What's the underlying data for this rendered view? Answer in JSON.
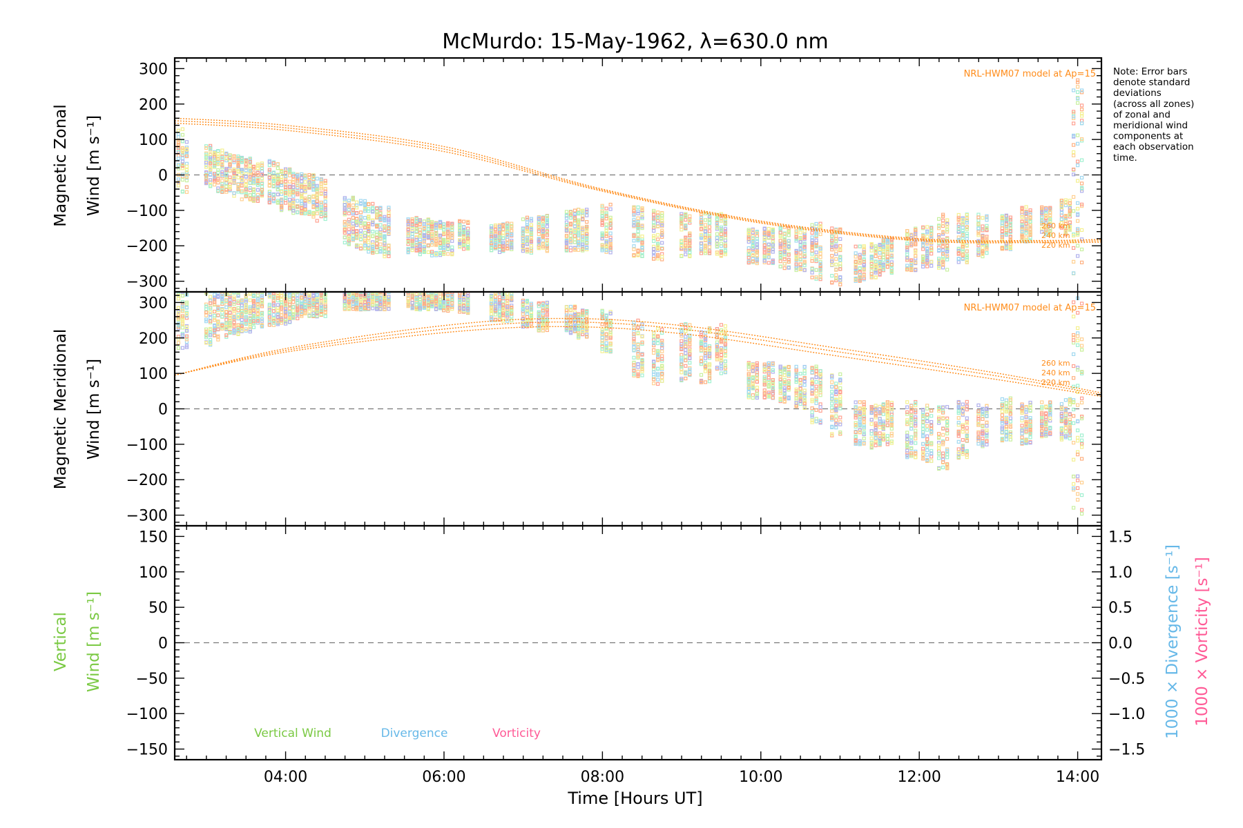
{
  "chart_data": [
    {
      "type": "scatter",
      "title": "McMurdo: 15-May-1962, λ=630.0 nm",
      "ylabel_line1": "Magnetic Zonal",
      "ylabel_line2": "Wind [m s⁻¹]",
      "xlim": [
        2.6,
        14.3
      ],
      "ylim": [
        -330,
        330
      ],
      "yticks": [
        -300,
        -200,
        -100,
        0,
        100,
        200,
        300
      ],
      "zero_line": true,
      "model_label": "NRL-HWM07 model at Ap=15",
      "altitude_labels": [
        "260 km",
        "240 km",
        "220 km"
      ],
      "model_curves": [
        {
          "name": "260 km",
          "x": [
            2.6,
            4,
            6,
            8,
            10,
            12,
            13.5,
            14.3
          ],
          "y": [
            160,
            140,
            80,
            -40,
            -130,
            -180,
            -185,
            -182
          ]
        },
        {
          "name": "240 km",
          "x": [
            2.6,
            4,
            6,
            8,
            10,
            12,
            13.5,
            14.3
          ],
          "y": [
            153,
            133,
            73,
            -43,
            -133,
            -183,
            -188,
            -186
          ]
        },
        {
          "name": "220 km",
          "x": [
            2.6,
            4,
            6,
            8,
            10,
            12,
            13.5,
            14.3
          ],
          "y": [
            146,
            126,
            66,
            -46,
            -136,
            -186,
            -191,
            -190
          ]
        }
      ],
      "observations": {
        "times": [
          2.7,
          3.05,
          3.2,
          3.35,
          3.5,
          3.65,
          3.85,
          4.0,
          4.15,
          4.3,
          4.45,
          4.8,
          4.95,
          5.1,
          5.25,
          5.6,
          5.75,
          5.9,
          6.05,
          6.25,
          6.65,
          6.8,
          7.05,
          7.25,
          7.6,
          7.75,
          8.05,
          8.45,
          8.7,
          9.05,
          9.3,
          9.5,
          9.9,
          10.1,
          10.3,
          10.5,
          10.7,
          10.95,
          11.25,
          11.45,
          11.6,
          11.9,
          12.1,
          12.3,
          12.55,
          12.8,
          13.1,
          13.35,
          13.6,
          13.85,
          14.0
        ],
        "centers": [
          40,
          25,
          10,
          0,
          -10,
          -20,
          -20,
          -40,
          -50,
          -60,
          -70,
          -130,
          -140,
          -150,
          -160,
          -170,
          -175,
          -180,
          -180,
          -170,
          -180,
          -175,
          -170,
          -165,
          -160,
          -155,
          -150,
          -160,
          -170,
          -170,
          -165,
          -170,
          -200,
          -200,
          -205,
          -210,
          -215,
          -230,
          -250,
          -240,
          -230,
          -210,
          -200,
          -190,
          -180,
          -170,
          -160,
          -140,
          -130,
          -120,
          0
        ],
        "spreads": [
          90,
          60,
          60,
          60,
          60,
          55,
          60,
          60,
          60,
          60,
          60,
          70,
          70,
          70,
          70,
          50,
          50,
          50,
          45,
          40,
          40,
          40,
          50,
          50,
          60,
          60,
          70,
          70,
          70,
          60,
          60,
          60,
          50,
          50,
          60,
          60,
          80,
          80,
          50,
          50,
          50,
          60,
          60,
          80,
          70,
          60,
          50,
          50,
          40,
          50,
          280
        ]
      }
    },
    {
      "type": "scatter",
      "ylabel_line1": "Magnetic Meridional",
      "ylabel_line2": "Wind [m s⁻¹]",
      "xlim": [
        2.6,
        14.3
      ],
      "ylim": [
        -330,
        330
      ],
      "yticks": [
        -300,
        -200,
        -100,
        0,
        100,
        200,
        300
      ],
      "zero_line": true,
      "model_label": "NRL-HWM07 model at Ap=15",
      "altitude_labels": [
        "260 km",
        "240 km",
        "220 km"
      ],
      "model_curves": [
        {
          "name": "260 km",
          "x": [
            2.6,
            4,
            6,
            7.5,
            9,
            11,
            13,
            14.3
          ],
          "y": [
            95,
            170,
            235,
            255,
            235,
            170,
            100,
            45
          ]
        },
        {
          "name": "240 km",
          "x": [
            2.6,
            4,
            6,
            7.5,
            9,
            11,
            13,
            14.3
          ],
          "y": [
            95,
            165,
            225,
            245,
            225,
            160,
            92,
            40
          ]
        },
        {
          "name": "220 km",
          "x": [
            2.6,
            4,
            6,
            7.5,
            9,
            11,
            13,
            14.3
          ],
          "y": [
            95,
            160,
            215,
            232,
            212,
            148,
            82,
            35
          ]
        }
      ],
      "observations": {
        "times": [
          2.7,
          3.05,
          3.2,
          3.35,
          3.5,
          3.65,
          3.85,
          4.0,
          4.15,
          4.3,
          4.45,
          4.8,
          4.95,
          5.1,
          5.25,
          5.6,
          5.75,
          5.9,
          6.05,
          6.25,
          6.65,
          6.8,
          7.05,
          7.25,
          7.6,
          7.75,
          8.05,
          8.45,
          8.7,
          9.05,
          9.3,
          9.5,
          9.9,
          10.1,
          10.3,
          10.5,
          10.7,
          10.95,
          11.25,
          11.45,
          11.6,
          11.9,
          12.1,
          12.3,
          12.55,
          12.8,
          13.1,
          13.35,
          13.6,
          13.85,
          14.0
        ],
        "centers": [
          250,
          260,
          265,
          270,
          275,
          280,
          285,
          290,
          295,
          300,
          300,
          310,
          310,
          310,
          310,
          310,
          310,
          310,
          305,
          300,
          290,
          285,
          270,
          260,
          250,
          240,
          220,
          170,
          150,
          160,
          150,
          170,
          80,
          80,
          70,
          60,
          40,
          10,
          -40,
          -50,
          -40,
          -60,
          -70,
          -80,
          -60,
          -50,
          -30,
          -40,
          -30,
          -30,
          0
        ],
        "spreads": [
          80,
          80,
          70,
          60,
          60,
          50,
          50,
          50,
          40,
          40,
          40,
          30,
          30,
          30,
          30,
          30,
          30,
          30,
          30,
          30,
          40,
          40,
          40,
          40,
          40,
          40,
          60,
          80,
          80,
          80,
          80,
          70,
          50,
          50,
          50,
          60,
          80,
          90,
          60,
          60,
          60,
          80,
          80,
          90,
          80,
          60,
          60,
          60,
          50,
          60,
          320
        ]
      }
    },
    {
      "type": "line",
      "ylabel_line1": "Vertical",
      "ylabel_line2": "Wind [m s⁻¹]",
      "y2label_line1": "1000 × Divergence [s⁻¹]",
      "y2label_line2": "1000 × Vorticity [s⁻¹]",
      "xlim": [
        2.6,
        14.3
      ],
      "ylim": [
        -165,
        165
      ],
      "yticks": [
        -150,
        -100,
        -50,
        0,
        50,
        100,
        150
      ],
      "y2lim": [
        -1.65,
        1.65
      ],
      "y2ticks": [
        -1.5,
        -1.0,
        -0.5,
        0.0,
        0.5,
        1.0,
        1.5
      ],
      "zero_line": true,
      "series": [
        {
          "name": "Vertical Wind",
          "values": []
        },
        {
          "name": "Divergence",
          "values": []
        },
        {
          "name": "Vorticity",
          "values": []
        }
      ],
      "xticks": [
        "04:00",
        "06:00",
        "08:00",
        "10:00",
        "12:00",
        "14:00"
      ],
      "xtick_values": [
        4,
        6,
        8,
        10,
        12,
        14
      ],
      "xlabel": "Time [Hours UT]"
    }
  ],
  "note_lines": [
    "Note: Error bars",
    "denote standard",
    "deviations",
    "(across all zones)",
    "of zonal and",
    "meridional wind",
    "components at",
    "each observation",
    "time."
  ],
  "legend": {
    "vertical": "Vertical Wind",
    "divergence": "Divergence",
    "vorticity": "Vorticity"
  },
  "colors": {
    "model": "#ff8c1a",
    "vertical": "#7ac943",
    "divergence": "#66b8e8",
    "vorticity": "#ff5a96",
    "obs_palette": [
      "#ffa090",
      "#ffb080",
      "#ffd090",
      "#f4f090",
      "#c8f0a0",
      "#a0f0d0",
      "#a0d8f0",
      "#b0b0ec"
    ]
  }
}
